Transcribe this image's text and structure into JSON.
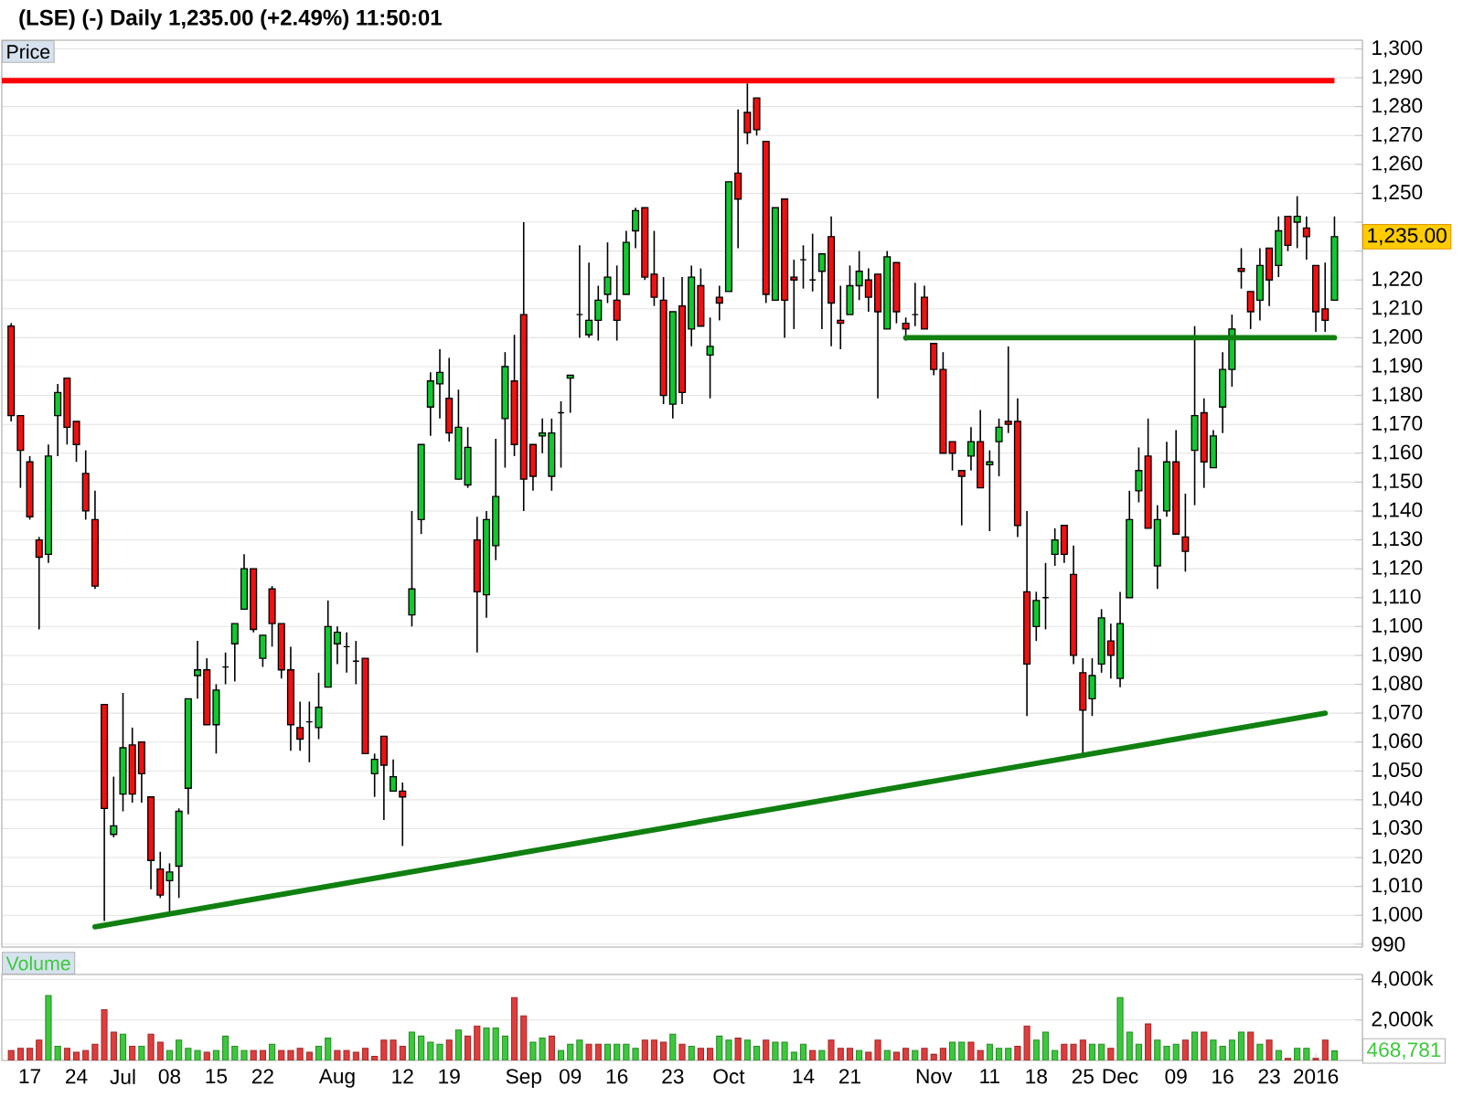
{
  "chart_data": [
    {
      "type": "candlestick",
      "title": "(LSE) (-) Daily 1,235.00 (+2.49%) 11:50:01",
      "subtitle": "Price",
      "categories": [
        null,
        null,
        null,
        null,
        null,
        null,
        null,
        null,
        null,
        null,
        null,
        null,
        null,
        null,
        null,
        null,
        null,
        null,
        null,
        null,
        null,
        null,
        null,
        null,
        null,
        null,
        null,
        null,
        null,
        null,
        null,
        null,
        null,
        null,
        null,
        null,
        null,
        null,
        null,
        null,
        null,
        null,
        null,
        null,
        null,
        null,
        null,
        null,
        null,
        null,
        null,
        null,
        null,
        null,
        null,
        null,
        null,
        null,
        null,
        null,
        null,
        null,
        null,
        null,
        null,
        null,
        null,
        null,
        null,
        null,
        null,
        null,
        null,
        null,
        null,
        null,
        null,
        null,
        null,
        null,
        null,
        null,
        null,
        null,
        null,
        null,
        null,
        null,
        null,
        null,
        null,
        null,
        null,
        null,
        null,
        null,
        null,
        null,
        null,
        null,
        null,
        null,
        null,
        null,
        null,
        null,
        null,
        null,
        null,
        null,
        null,
        null,
        null,
        null,
        null,
        null,
        null,
        null,
        null,
        null,
        null,
        null,
        null,
        null,
        null,
        null,
        null,
        null,
        null,
        null,
        null,
        null,
        null,
        null,
        null,
        null,
        null,
        null,
        null,
        null,
        null,
        null,
        null
      ],
      "ohlc": [
        [
          1204,
          1205,
          1171,
          1173
        ],
        [
          1173,
          1173,
          1148,
          1161
        ],
        [
          1157,
          1159,
          1137,
          1138
        ],
        [
          1130,
          1131,
          1099,
          1124
        ],
        [
          1125,
          1163,
          1122,
          1159
        ],
        [
          1173,
          1184,
          1159,
          1181
        ],
        [
          1186,
          1186,
          1163,
          1169
        ],
        [
          1171,
          1171,
          1157,
          1163
        ],
        [
          1153,
          1161,
          1137,
          1140
        ],
        [
          1137,
          1147,
          1113,
          1114
        ],
        [
          1073,
          1073,
          998,
          1037
        ],
        [
          1028,
          1048,
          1027,
          1031
        ],
        [
          1042,
          1077,
          1036,
          1058
        ],
        [
          1059,
          1065,
          1039,
          1042
        ],
        [
          1060,
          1060,
          1039,
          1049
        ],
        [
          1041,
          1041,
          1009,
          1019
        ],
        [
          1016,
          1022,
          1006,
          1007
        ],
        [
          1012,
          1018,
          1000,
          1015
        ],
        [
          1017,
          1037,
          1006,
          1036
        ],
        [
          1044,
          1075,
          1035,
          1075
        ],
        [
          1083,
          1095,
          1075,
          1085
        ],
        [
          1085,
          1089,
          1066,
          1066
        ],
        [
          1066,
          1080,
          1056,
          1078
        ],
        [
          1086,
          1091,
          1080,
          1086
        ],
        [
          1094,
          1101,
          1081,
          1101
        ],
        [
          1106,
          1125,
          1106,
          1120
        ],
        [
          1120,
          1120,
          1098,
          1099
        ],
        [
          1089,
          1097,
          1086,
          1097
        ],
        [
          1113,
          1114,
          1093,
          1101
        ],
        [
          1101,
          1101,
          1082,
          1085
        ],
        [
          1085,
          1093,
          1057,
          1066
        ],
        [
          1065,
          1074,
          1057,
          1061
        ],
        [
          1067,
          1074,
          1053,
          1067
        ],
        [
          1065,
          1084,
          1061,
          1072
        ],
        [
          1079,
          1109,
          1079,
          1100
        ],
        [
          1094,
          1100,
          1087,
          1098
        ],
        [
          1093,
          1098,
          1084,
          1093
        ],
        [
          1088,
          1095,
          1080,
          1088
        ],
        [
          1089,
          1089,
          1056,
          1056
        ],
        [
          1049,
          1056,
          1041,
          1054
        ],
        [
          1062,
          1062,
          1033,
          1052
        ],
        [
          1043,
          1054,
          1043,
          1048
        ],
        [
          1043,
          1046,
          1024,
          1041
        ],
        [
          1104,
          1140,
          1100,
          1113
        ],
        [
          1137,
          1163,
          1132,
          1163
        ],
        [
          1176,
          1188,
          1166,
          1185
        ],
        [
          1184,
          1196,
          1172,
          1188
        ],
        [
          1179,
          1193,
          1164,
          1167
        ],
        [
          1151,
          1182,
          1151,
          1169
        ],
        [
          1149,
          1169,
          1148,
          1162
        ],
        [
          1130,
          1138,
          1091,
          1112
        ],
        [
          1111,
          1140,
          1103,
          1137
        ],
        [
          1128,
          1165,
          1123,
          1145
        ],
        [
          1172,
          1195,
          1155,
          1190
        ],
        [
          1185,
          1201,
          1159,
          1163
        ],
        [
          1208,
          1240,
          1140,
          1151
        ],
        [
          1163,
          1163,
          1147,
          1152
        ],
        [
          1166,
          1172,
          1160,
          1167
        ],
        [
          1152,
          1172,
          1147,
          1167
        ],
        [
          1174,
          1178,
          1155,
          1174
        ],
        [
          1186,
          1187,
          1174,
          1187
        ],
        [
          1208,
          1232,
          1200,
          1208
        ],
        [
          1201,
          1226,
          1200,
          1206
        ],
        [
          1206,
          1218,
          1199,
          1213
        ],
        [
          1215,
          1233,
          1212,
          1221
        ],
        [
          1213,
          1225,
          1199,
          1206
        ],
        [
          1215,
          1237,
          1215,
          1233
        ],
        [
          1237,
          1245,
          1231,
          1244
        ],
        [
          1245,
          1245,
          1220,
          1221
        ],
        [
          1222,
          1237,
          1211,
          1214
        ],
        [
          1213,
          1221,
          1177,
          1180
        ],
        [
          1177,
          1209,
          1172,
          1209
        ],
        [
          1211,
          1221,
          1177,
          1181
        ],
        [
          1203,
          1225,
          1197,
          1221
        ],
        [
          1218,
          1224,
          1204,
          1204
        ],
        [
          1194,
          1207,
          1179,
          1197
        ],
        [
          1214,
          1218,
          1206,
          1212
        ],
        [
          1216,
          1254,
          1216,
          1254
        ],
        [
          1257,
          1279,
          1231,
          1248
        ],
        [
          1278,
          1288,
          1267,
          1271
        ],
        [
          1283,
          1283,
          1270,
          1272
        ],
        [
          1268,
          1268,
          1212,
          1215
        ],
        [
          1213,
          1245,
          1213,
          1245
        ],
        [
          1248,
          1248,
          1200,
          1213
        ],
        [
          1221,
          1227,
          1203,
          1220
        ],
        [
          1227,
          1232,
          1217,
          1227
        ],
        [
          1220,
          1236,
          1216,
          1220
        ],
        [
          1223,
          1229,
          1203,
          1229
        ],
        [
          1235,
          1242,
          1197,
          1212
        ],
        [
          1206,
          1218,
          1196,
          1205
        ],
        [
          1208,
          1225,
          1208,
          1218
        ],
        [
          1218,
          1230,
          1213,
          1223
        ],
        [
          1220,
          1224,
          1209,
          1214
        ],
        [
          1222,
          1222,
          1179,
          1209
        ],
        [
          1203,
          1230,
          1203,
          1228
        ],
        [
          1226,
          1226,
          1205,
          1209
        ],
        [
          1205,
          1207,
          1199,
          1203
        ],
        [
          1208,
          1219,
          1204,
          1208
        ],
        [
          1214,
          1218,
          1203,
          1203
        ],
        [
          1198,
          1198,
          1187,
          1189
        ],
        [
          1189,
          1195,
          1160,
          1160
        ],
        [
          1164,
          1164,
          1154,
          1160
        ],
        [
          1154,
          1154,
          1135,
          1152
        ],
        [
          1159,
          1169,
          1154,
          1164
        ],
        [
          1164,
          1175,
          1148,
          1148
        ],
        [
          1156,
          1161,
          1133,
          1157
        ],
        [
          1164,
          1172,
          1152,
          1169
        ],
        [
          1171,
          1197,
          1167,
          1170
        ],
        [
          1171,
          1179,
          1131,
          1135
        ],
        [
          1112,
          1140,
          1069,
          1087
        ],
        [
          1100,
          1112,
          1095,
          1109
        ],
        [
          1110,
          1122,
          1099,
          1110
        ],
        [
          1125,
          1134,
          1121,
          1130
        ],
        [
          1135,
          1135,
          1122,
          1125
        ],
        [
          1118,
          1128,
          1087,
          1090
        ],
        [
          1084,
          1089,
          1056,
          1071
        ],
        [
          1075,
          1089,
          1069,
          1083
        ],
        [
          1087,
          1106,
          1084,
          1103
        ],
        [
          1095,
          1101,
          1082,
          1090
        ],
        [
          1082,
          1112,
          1079,
          1101
        ],
        [
          1110,
          1147,
          1110,
          1137
        ],
        [
          1147,
          1162,
          1143,
          1154
        ],
        [
          1159,
          1172,
          1134,
          1134
        ],
        [
          1121,
          1142,
          1113,
          1137
        ],
        [
          1140,
          1164,
          1138,
          1157
        ],
        [
          1157,
          1168,
          1132,
          1132
        ],
        [
          1131,
          1146,
          1119,
          1126
        ],
        [
          1161,
          1204,
          1142,
          1173
        ],
        [
          1174,
          1179,
          1148,
          1157
        ],
        [
          1155,
          1168,
          1155,
          1166
        ],
        [
          1176,
          1195,
          1167,
          1189
        ],
        [
          1189,
          1208,
          1183,
          1203
        ],
        [
          1224,
          1231,
          1217,
          1223
        ],
        [
          1216,
          1216,
          1203,
          1209
        ],
        [
          1213,
          1231,
          1206,
          1225
        ],
        [
          1231,
          1231,
          1211,
          1220
        ],
        [
          1225,
          1242,
          1221,
          1237
        ],
        [
          1242,
          1242,
          1230,
          1232
        ],
        [
          1240,
          1249,
          1231,
          1242
        ],
        [
          1238,
          1242,
          1227,
          1235
        ],
        [
          1225,
          1225,
          1202,
          1209
        ],
        [
          1210,
          1226,
          1202,
          1206
        ],
        [
          1213,
          1242,
          1213,
          1235
        ]
      ],
      "colors": [
        "#f01010",
        "#f01010",
        "#f01010",
        "#f01010",
        "#10c830",
        "#10c830",
        "#f01010",
        "#f01010",
        "#f01010",
        "#f01010",
        "#f01010",
        "#10c830",
        "#10c830",
        "#f01010",
        "#f01010",
        "#f01010",
        "#f01010",
        "#10c830",
        "#10c830",
        "#10c830",
        "#10c830",
        "#f01010",
        "#10c830",
        "#000000",
        "#10c830",
        "#10c830",
        "#f01010",
        "#10c830",
        "#f01010",
        "#f01010",
        "#f01010",
        "#f01010",
        "#000000",
        "#10c830",
        "#10c830",
        "#10c830",
        "#000000",
        "#000000",
        "#f01010",
        "#10c830",
        "#f01010",
        "#10c830",
        "#f01010",
        "#10c830",
        "#10c830",
        "#10c830",
        "#10c830",
        "#f01010",
        "#10c830",
        "#10c830",
        "#f01010",
        "#10c830",
        "#10c830",
        "#10c830",
        "#f01010",
        "#f01010",
        "#f01010",
        "#10c830",
        "#10c830",
        "#000000",
        "#10c830",
        "#000000",
        "#10c830",
        "#10c830",
        "#10c830",
        "#f01010",
        "#10c830",
        "#10c830",
        "#f01010",
        "#f01010",
        "#f01010",
        "#10c830",
        "#f01010",
        "#10c830",
        "#f01010",
        "#10c830",
        "#f01010",
        "#10c830",
        "#f01010",
        "#f01010",
        "#f01010",
        "#f01010",
        "#10c830",
        "#f01010",
        "#f01010",
        "#000000",
        "#000000",
        "#10c830",
        "#f01010",
        "#f01010",
        "#10c830",
        "#10c830",
        "#f01010",
        "#f01010",
        "#10c830",
        "#f01010",
        "#f01010",
        "#000000",
        "#f01010",
        "#f01010",
        "#f01010",
        "#f01010",
        "#f01010",
        "#10c830",
        "#f01010",
        "#10c830",
        "#10c830",
        "#f01010",
        "#f01010",
        "#f01010",
        "#10c830",
        "#000000",
        "#10c830",
        "#f01010",
        "#f01010",
        "#f01010",
        "#10c830",
        "#10c830",
        "#f01010",
        "#10c830",
        "#10c830",
        "#10c830",
        "#f01010",
        "#10c830",
        "#10c830",
        "#f01010",
        "#f01010",
        "#10c830",
        "#f01010",
        "#10c830",
        "#10c830",
        "#10c830",
        "#f01010",
        "#f01010",
        "#10c830",
        "#f01010",
        "#10c830",
        "#f01010",
        "#10c830",
        "#f01010",
        "#f01010",
        "#f01010",
        "#10c830"
      ],
      "series": [
        {
          "type": "line",
          "color": "#108010",
          "values": [
            null,
            null,
            null,
            null,
            null,
            null,
            null,
            null,
            null,
            null,
            null,
            null,
            null,
            null,
            null,
            null,
            null,
            null,
            null,
            null,
            null,
            null,
            null,
            null,
            null,
            null,
            null,
            null,
            null,
            null,
            null,
            null,
            null,
            null,
            null,
            null,
            null,
            null,
            null,
            null,
            null,
            null,
            null,
            null,
            null,
            null,
            null,
            null,
            null,
            null,
            null,
            null,
            null,
            null,
            null,
            null,
            null,
            null,
            null,
            null,
            null,
            null,
            null,
            null,
            null,
            null,
            null,
            null,
            null,
            null,
            null,
            null,
            null,
            null,
            null,
            null,
            null,
            null,
            null,
            null,
            null,
            null,
            null,
            null,
            null,
            null,
            null,
            null,
            null,
            null,
            null,
            null,
            null,
            null,
            null,
            null,
            1200,
            null,
            null,
            null,
            null,
            null,
            null,
            null,
            null,
            null,
            null,
            null,
            null,
            null,
            null,
            null,
            null,
            null,
            null,
            null,
            null,
            null,
            null,
            null,
            null,
            null,
            null,
            null,
            null,
            null,
            null,
            null,
            null,
            null,
            null,
            null,
            null,
            null,
            null,
            null,
            null,
            null,
            null,
            null,
            null,
            null,
            1200
          ]
        },
        {
          "type": "line",
          "color": "#108010",
          "values": [
            null,
            null,
            null,
            null,
            null,
            null,
            null,
            null,
            null,
            996,
            null,
            null,
            null,
            null,
            null,
            null,
            null,
            null,
            null,
            null,
            null,
            null,
            null,
            null,
            null,
            null,
            null,
            null,
            null,
            null,
            null,
            null,
            null,
            null,
            null,
            null,
            null,
            null,
            null,
            null,
            null,
            null,
            null,
            null,
            null,
            null,
            null,
            null,
            null,
            null,
            null,
            null,
            null,
            null,
            null,
            null,
            null,
            null,
            null,
            null,
            null,
            null,
            null,
            null,
            null,
            null,
            null,
            null,
            null,
            null,
            null,
            null,
            null,
            null,
            null,
            null,
            null,
            null,
            null,
            null,
            null,
            null,
            null,
            null,
            null,
            null,
            null,
            null,
            null,
            null,
            null,
            null,
            null,
            null,
            null,
            null,
            null,
            null,
            null,
            null,
            null,
            null,
            null,
            null,
            null,
            null,
            null,
            null,
            null,
            null,
            null,
            null,
            null,
            null,
            null,
            null,
            null,
            null,
            null,
            null,
            null,
            null,
            null,
            null,
            null,
            null,
            null,
            null,
            null,
            null,
            null,
            null,
            null,
            null,
            null,
            null,
            null,
            null,
            null,
            null,
            null,
            1070,
            null
          ]
        }
      ],
      "ylim": [
        989,
        1303
      ],
      "yticks": [
        990,
        {
          "value": 1000,
          "label": "1,000"
        },
        {
          "value": 1010,
          "label": "1,010"
        },
        {
          "value": 1020,
          "label": "1,020"
        },
        {
          "value": 1030,
          "label": "1,030"
        },
        {
          "value": 1040,
          "label": "1,040"
        },
        {
          "value": 1050,
          "label": "1,050"
        },
        {
          "value": 1060,
          "label": "1,060"
        },
        {
          "value": 1070,
          "label": "1,070"
        },
        {
          "value": 1080,
          "label": "1,080"
        },
        {
          "value": 1090,
          "label": "1,090"
        },
        {
          "value": 1100,
          "label": "1,100"
        },
        {
          "value": 1110,
          "label": "1,110"
        },
        {
          "value": 1120,
          "label": "1,120"
        },
        {
          "value": 1130,
          "label": "1,130"
        },
        {
          "value": 1140,
          "label": "1,140"
        },
        {
          "value": 1150,
          "label": "1,150"
        },
        {
          "value": 1160,
          "label": "1,160"
        },
        {
          "value": 1170,
          "label": "1,170"
        },
        {
          "value": 1180,
          "label": "1,180"
        },
        {
          "value": 1190,
          "label": "1,190"
        },
        {
          "value": 1200,
          "label": "1,200"
        },
        {
          "value": 1210,
          "label": "1,210"
        },
        {
          "value": 1220,
          "label": "1,220"
        },
        {
          "value": 1230,
          "label": null
        },
        {
          "value": 1240,
          "label": null
        },
        {
          "value": 1250,
          "label": "1,250"
        },
        {
          "value": 1260,
          "label": "1,260"
        },
        {
          "value": 1270,
          "label": "1,270"
        },
        {
          "value": 1280,
          "label": "1,280"
        },
        {
          "value": 1290,
          "label": "1,290"
        },
        {
          "value": 1300,
          "label": "1,300"
        }
      ],
      "grid": "y",
      "ref_lines": [
        {
          "axis": "y",
          "value": 1289,
          "color": "#ff0000"
        }
      ],
      "annotations": [
        "1,235.00"
      ]
    },
    {
      "type": "bar",
      "title": "Volume",
      "categories": [
        null,
        null,
        "17",
        null,
        null,
        null,
        null,
        "24",
        null,
        null,
        null,
        null,
        "Jul",
        null,
        null,
        null,
        null,
        "08",
        null,
        null,
        null,
        null,
        "15",
        null,
        null,
        null,
        null,
        "22",
        null,
        null,
        null,
        null,
        null,
        null,
        null,
        "Aug",
        null,
        null,
        null,
        null,
        null,
        null,
        "12",
        null,
        null,
        null,
        null,
        "19",
        null,
        null,
        null,
        null,
        null,
        null,
        null,
        "Sep",
        null,
        null,
        null,
        null,
        "09",
        null,
        null,
        null,
        null,
        "16",
        null,
        null,
        null,
        null,
        null,
        "23",
        null,
        null,
        null,
        null,
        null,
        "Oct",
        null,
        null,
        null,
        null,
        null,
        null,
        null,
        "14",
        null,
        null,
        null,
        null,
        "21",
        null,
        null,
        null,
        null,
        null,
        null,
        null,
        null,
        "Nov",
        null,
        null,
        null,
        null,
        null,
        "11",
        null,
        null,
        null,
        null,
        "18",
        null,
        null,
        null,
        null,
        "25",
        null,
        null,
        null,
        "Dec",
        null,
        null,
        null,
        null,
        null,
        "09",
        null,
        null,
        null,
        null,
        "16",
        null,
        null,
        null,
        null,
        "23",
        null,
        null,
        null,
        null,
        "2016",
        null,
        null
      ],
      "values": [
        500,
        600,
        600,
        1000,
        3200,
        700,
        600,
        400,
        500,
        800,
        2500,
        1400,
        1300,
        700,
        700,
        1300,
        900,
        500,
        1000,
        600,
        500,
        400,
        500,
        1200,
        700,
        500,
        500,
        500,
        800,
        500,
        500,
        600,
        400,
        700,
        1100,
        500,
        500,
        400,
        600,
        200,
        1000,
        1000,
        700,
        1400,
        1200,
        900,
        800,
        1000,
        1500,
        1200,
        1700,
        1600,
        1600,
        1200,
        3100,
        2200,
        900,
        1100,
        1200,
        500,
        800,
        1000,
        800,
        800,
        800,
        800,
        800,
        600,
        1000,
        1000,
        900,
        1300,
        800,
        700,
        600,
        600,
        1200,
        1000,
        1100,
        1000,
        700,
        1000,
        900,
        900,
        400,
        800,
        500,
        500,
        1000,
        600,
        600,
        500,
        400,
        1000,
        500,
        400,
        600,
        500,
        600,
        300,
        600,
        900,
        900,
        900,
        500,
        800,
        600,
        600,
        700,
        1700,
        1000,
        1400,
        500,
        800,
        800,
        1000,
        800,
        800,
        600,
        3100,
        1400,
        800,
        1800,
        1000,
        700,
        800,
        1000,
        1400,
        1400,
        1000,
        700,
        1000,
        1400,
        1400,
        800,
        1000,
        500,
        100,
        600,
        600,
        100,
        1000,
        468.781
      ],
      "colors": [
        "#e03c3c",
        "#e03c3c",
        "#e03c3c",
        "#e03c3c",
        "#3cc83c",
        "#3cc83c",
        "#e03c3c",
        "#e03c3c",
        "#e03c3c",
        "#e03c3c",
        "#e03c3c",
        "#e03c3c",
        "#3cc83c",
        "#e03c3c",
        "#3cc83c",
        "#e03c3c",
        "#e03c3c",
        "#3cc83c",
        "#3cc83c",
        "#3cc83c",
        "#3cc83c",
        "#e03c3c",
        "#3cc83c",
        "#3cc83c",
        "#3cc83c",
        "#3cc83c",
        "#e03c3c",
        "#e03c3c",
        "#3cc83c",
        "#e03c3c",
        "#e03c3c",
        "#e03c3c",
        "#e03c3c",
        "#3cc83c",
        "#3cc83c",
        "#e03c3c",
        "#e03c3c",
        "#e03c3c",
        "#e03c3c",
        "#e03c3c",
        "#e03c3c",
        "#e03c3c",
        "#e03c3c",
        "#3cc83c",
        "#3cc83c",
        "#3cc83c",
        "#3cc83c",
        "#e03c3c",
        "#3cc83c",
        "#e03c3c",
        "#e03c3c",
        "#3cc83c",
        "#3cc83c",
        "#3cc83c",
        "#e03c3c",
        "#e03c3c",
        "#3cc83c",
        "#3cc83c",
        "#e03c3c",
        "#3cc83c",
        "#3cc83c",
        "#3cc83c",
        "#e03c3c",
        "#e03c3c",
        "#3cc83c",
        "#3cc83c",
        "#3cc83c",
        "#3cc83c",
        "#e03c3c",
        "#e03c3c",
        "#e03c3c",
        "#3cc83c",
        "#e03c3c",
        "#3cc83c",
        "#e03c3c",
        "#e03c3c",
        "#3cc83c",
        "#3cc83c",
        "#e03c3c",
        "#3cc83c",
        "#3cc83c",
        "#e03c3c",
        "#3cc83c",
        "#3cc83c",
        "#3cc83c",
        "#3cc83c",
        "#e03c3c",
        "#3cc83c",
        "#e03c3c",
        "#e03c3c",
        "#e03c3c",
        "#3cc83c",
        "#e03c3c",
        "#e03c3c",
        "#3cc83c",
        "#e03c3c",
        "#e03c3c",
        "#3cc83c",
        "#e03c3c",
        "#e03c3c",
        "#e03c3c",
        "#3cc83c",
        "#3cc83c",
        "#e03c3c",
        "#e03c3c",
        "#3cc83c",
        "#3cc83c",
        "#3cc83c",
        "#e03c3c",
        "#e03c3c",
        "#3cc83c",
        "#3cc83c",
        "#3cc83c",
        "#e03c3c",
        "#e03c3c",
        "#e03c3c",
        "#3cc83c",
        "#3cc83c",
        "#e03c3c",
        "#3cc83c",
        "#3cc83c",
        "#3cc83c",
        "#e03c3c",
        "#3cc83c",
        "#3cc83c",
        "#3cc83c",
        "#e03c3c",
        "#3cc83c",
        "#e03c3c",
        "#3cc83c",
        "#3cc83c",
        "#3cc83c",
        "#3cc83c",
        "#e03c3c",
        "#3cc83c",
        "#e03c3c",
        "#3cc83c",
        "#e03c3c",
        "#3cc83c",
        "#3cc83c",
        "#e03c3c",
        "#e03c3c",
        "#3cc83c"
      ],
      "ylim": [
        0,
        4240
      ],
      "yticks": [
        {
          "value": 2000,
          "label": "2,000k"
        },
        {
          "value": 4000,
          "label": "4,000k"
        }
      ],
      "grid": "y",
      "annotations": [
        "468,781"
      ]
    }
  ]
}
